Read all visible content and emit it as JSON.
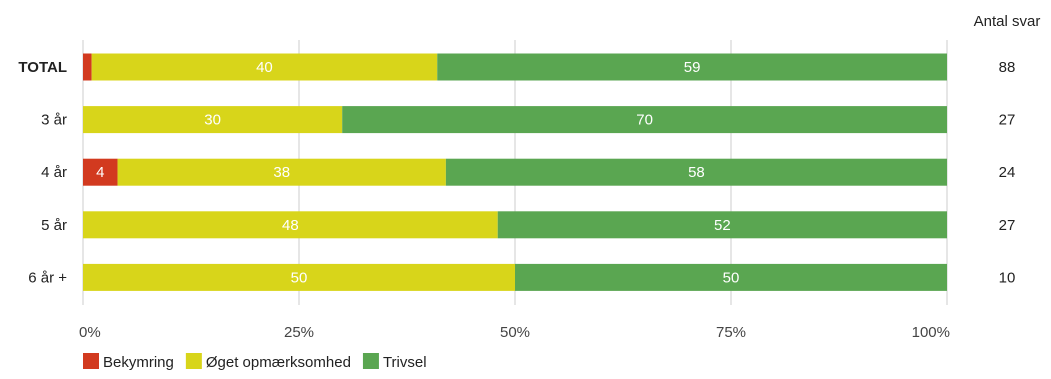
{
  "chart_data": {
    "type": "bar",
    "orientation": "horizontal",
    "stacked": true,
    "normalized_percent": true,
    "categories": [
      "TOTAL",
      "3 år",
      "4 år",
      "5 år",
      "6 år +"
    ],
    "series": [
      {
        "name": "Bekymring",
        "color": "#d23a1f",
        "values": [
          1,
          0,
          4,
          0,
          0
        ],
        "labels": [
          "",
          "",
          "4",
          "",
          ""
        ]
      },
      {
        "name": "Øget opmærksomhed",
        "color": "#d8d51a",
        "values": [
          40,
          30,
          38,
          48,
          50
        ],
        "labels": [
          "40",
          "30",
          "38",
          "48",
          "50"
        ]
      },
      {
        "name": "Trivsel",
        "color": "#5aa651",
        "values": [
          59,
          70,
          58,
          52,
          50
        ],
        "labels": [
          "59",
          "70",
          "58",
          "52",
          "50"
        ]
      }
    ],
    "xlim": [
      0,
      100
    ],
    "x_ticks": [
      "0%",
      "25%",
      "50%",
      "75%",
      "100%"
    ],
    "grid": true,
    "legend_position": "bottom-left",
    "bold_categories": [
      "TOTAL"
    ],
    "right_column": {
      "header": "Antal svar",
      "values": [
        "88",
        "27",
        "24",
        "27",
        "10"
      ]
    }
  }
}
